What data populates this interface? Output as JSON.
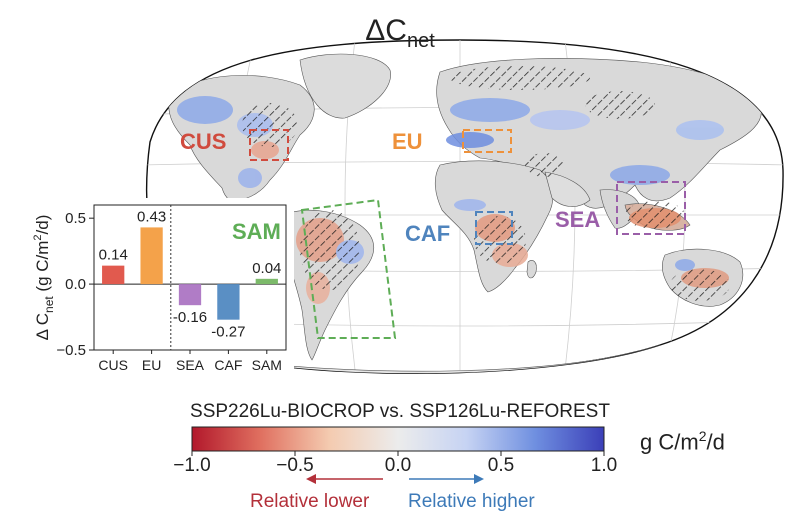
{
  "title": {
    "prefix": "Δ",
    "main": "C",
    "sub": "net"
  },
  "regions": [
    {
      "code": "CUS",
      "color": "#d04b3e"
    },
    {
      "code": "EU",
      "color": "#ee913a"
    },
    {
      "code": "SAM",
      "color": "#5ead56"
    },
    {
      "code": "CAF",
      "color": "#4f84bd"
    },
    {
      "code": "SEA",
      "color": "#9a5ea8"
    }
  ],
  "chart_data": {
    "type": "bar",
    "categories": [
      "CUS",
      "EU",
      "SEA",
      "CAF",
      "SAM"
    ],
    "values": [
      0.14,
      0.43,
      -0.16,
      -0.27,
      0.04
    ],
    "value_labels": [
      "0.14",
      "0.43",
      "-0.16",
      "-0.27",
      "0.04"
    ],
    "bar_colors": [
      "#e15a4e",
      "#f4a24a",
      "#b07cc6",
      "#5a8fc4",
      "#7cba6a"
    ],
    "ylabel": {
      "prefix": "Δ C",
      "sub": "net",
      "mid": " (g C/m",
      "sup": "2",
      "end": "/d)"
    },
    "ylim": [
      -0.5,
      0.6
    ],
    "yticks": [
      "0.5",
      "0.0",
      "−0.5"
    ],
    "ytick_values": [
      0.5,
      0.0,
      -0.5
    ],
    "separator_after_index": 1
  },
  "colorbar": {
    "title": "SSP226Lu-BIOCROP vs. SSP126Lu-REFOREST",
    "min": -1.0,
    "max": 1.0,
    "ticks": [
      "−1.0",
      "−0.5",
      "0.0",
      "0.5",
      "1.0"
    ],
    "tick_values": [
      -1.0,
      -0.5,
      0.0,
      0.5,
      1.0
    ],
    "colors": [
      "#b2182b",
      "#e07060",
      "#f4cbb0",
      "#ececec",
      "#c6d3f3",
      "#6f8fe0",
      "#3b3fb8"
    ],
    "unit": {
      "main": "g C/m",
      "sup": "2",
      "end": "/d"
    }
  },
  "arrows": {
    "lower": {
      "label": "Relative lower",
      "color": "#b3303a"
    },
    "higher": {
      "label": "Relative higher",
      "color": "#3d7ab8"
    }
  }
}
